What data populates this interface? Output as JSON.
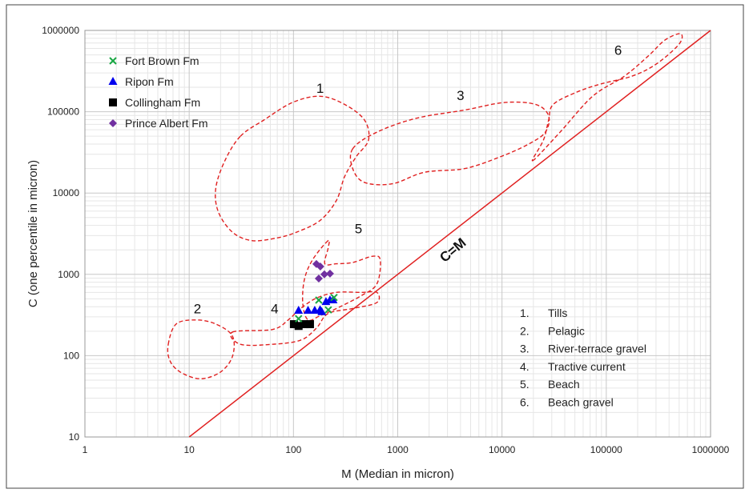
{
  "chart_data": {
    "type": "scatter",
    "title": "",
    "xlabel": "M (Median in micron)",
    "ylabel": "C (one percentile in micron)",
    "xscale": "log",
    "yscale": "log",
    "xlim": [
      1,
      1000000
    ],
    "ylim": [
      10,
      1000000
    ],
    "xticks": [
      "1",
      "10",
      "100",
      "1000",
      "10000",
      "100000",
      "1000000"
    ],
    "yticks": [
      "10",
      "100",
      "1000",
      "10000",
      "100000",
      "1000000"
    ],
    "grid": true,
    "legend_position": "top-left",
    "series": [
      {
        "name": "Fort Brown Fm",
        "marker": "x",
        "color": "#1aa845",
        "points": [
          [
            175,
            482
          ],
          [
            216,
            366
          ],
          [
            245,
            520
          ],
          [
            112,
            285
          ]
        ]
      },
      {
        "name": "Ripon Fm",
        "marker": "triangle",
        "color": "#0000ee",
        "points": [
          [
            112,
            359
          ],
          [
            138,
            359
          ],
          [
            160,
            359
          ],
          [
            180,
            365
          ],
          [
            187,
            345
          ],
          [
            205,
            460
          ],
          [
            224,
            482
          ],
          [
            240,
            482
          ]
        ]
      },
      {
        "name": "Collingham Fm",
        "marker": "square",
        "color": "#000000",
        "points": [
          [
            101,
            244
          ],
          [
            112,
            232
          ],
          [
            127,
            244
          ],
          [
            144,
            244
          ]
        ]
      },
      {
        "name": "Prince Albert Fm",
        "marker": "diamond",
        "color": "#7030a0",
        "points": [
          [
            166,
            1340
          ],
          [
            181,
            1250
          ],
          [
            175,
            890
          ],
          [
            198,
            1000
          ],
          [
            224,
            1020
          ]
        ]
      }
    ],
    "reference_line": {
      "label": "C=M",
      "color": "#e02020"
    },
    "regions": [
      {
        "id": "1",
        "name": "Tills",
        "points": [
          [
            31,
            50000
          ],
          [
            52,
            79000
          ],
          [
            98,
            130000
          ],
          [
            180,
            155000
          ],
          [
            310,
            123000
          ],
          [
            480,
            79000
          ],
          [
            525,
            45000
          ],
          [
            400,
            28000
          ],
          [
            310,
            16000
          ],
          [
            258,
            8100
          ],
          [
            180,
            4600
          ],
          [
            107,
            3300
          ],
          [
            69,
            2800
          ],
          [
            40,
            2600
          ],
          [
            26,
            3300
          ],
          [
            19,
            5900
          ],
          [
            18,
            11500
          ],
          [
            22,
            25000
          ]
        ],
        "label_at": [
          180,
          170000
        ]
      },
      {
        "id": "2",
        "name": "Pelagic",
        "points": [
          [
            6.3,
            138
          ],
          [
            7.5,
            245
          ],
          [
            11.7,
            275
          ],
          [
            18,
            245
          ],
          [
            26,
            174
          ],
          [
            26,
            98
          ],
          [
            20,
            63
          ],
          [
            12.8,
            52
          ],
          [
            8.2,
            63
          ],
          [
            6.5,
            88
          ]
        ],
        "label_at": [
          12,
          330
        ]
      },
      {
        "id": "3",
        "name": "River-terrace gravel",
        "points": [
          [
            370,
            35000
          ],
          [
            630,
            56000
          ],
          [
            1500,
            83000
          ],
          [
            4400,
            105000
          ],
          [
            10600,
            130000
          ],
          [
            21000,
            123000
          ],
          [
            28000,
            89000
          ],
          [
            26000,
            56000
          ],
          [
            18000,
            40000
          ],
          [
            9700,
            28000
          ],
          [
            4400,
            20000
          ],
          [
            1800,
            18000
          ],
          [
            890,
            13000
          ],
          [
            480,
            13500
          ],
          [
            370,
            20000
          ]
        ],
        "label_at": [
          4000,
          140000
        ]
      },
      {
        "id": "4",
        "name": "Tractive current",
        "points": [
          [
            26,
            195
          ],
          [
            63,
            210
          ],
          [
            89,
            275
          ],
          [
            117,
            380
          ],
          [
            166,
            510
          ],
          [
            258,
            600
          ],
          [
            440,
            600
          ],
          [
            630,
            600
          ],
          [
            630,
            450
          ],
          [
            370,
            380
          ],
          [
            215,
            330
          ],
          [
            166,
            218
          ],
          [
            117,
            155
          ],
          [
            63,
            138
          ],
          [
            31,
            138
          ]
        ],
        "label_at": [
          66,
          330
        ]
      },
      {
        "id": "5",
        "name": "Beach",
        "points": [
          [
            215,
            2600
          ],
          [
            152,
            1500
          ],
          [
            127,
            850
          ],
          [
            123,
            430
          ],
          [
            138,
            275
          ],
          [
            180,
            310
          ],
          [
            258,
            380
          ],
          [
            440,
            540
          ],
          [
            630,
            760
          ],
          [
            680,
            1500
          ],
          [
            575,
            1670
          ],
          [
            370,
            1400
          ],
          [
            258,
            1350
          ],
          [
            200,
            1350
          ],
          [
            215,
            2100
          ]
        ],
        "label_at": [
          420,
          3200
        ]
      },
      {
        "id": "6",
        "name": "Beach gravel",
        "points": [
          [
            19700,
            25000
          ],
          [
            36000,
            56000
          ],
          [
            74000,
            155000
          ],
          [
            150000,
            275000
          ],
          [
            255000,
            490000
          ],
          [
            365000,
            760000
          ],
          [
            515000,
            910000
          ],
          [
            500000,
            680000
          ],
          [
            305000,
            390000
          ],
          [
            178000,
            275000
          ],
          [
            89000,
            220000
          ],
          [
            52000,
            174000
          ],
          [
            31000,
            123000
          ],
          [
            28000,
            79000
          ],
          [
            25000,
            45000
          ]
        ],
        "label_at": [
          130000,
          500000
        ]
      }
    ],
    "region_legend": [
      "1.",
      "2.",
      "3.",
      "4.",
      "5.",
      "6."
    ]
  }
}
